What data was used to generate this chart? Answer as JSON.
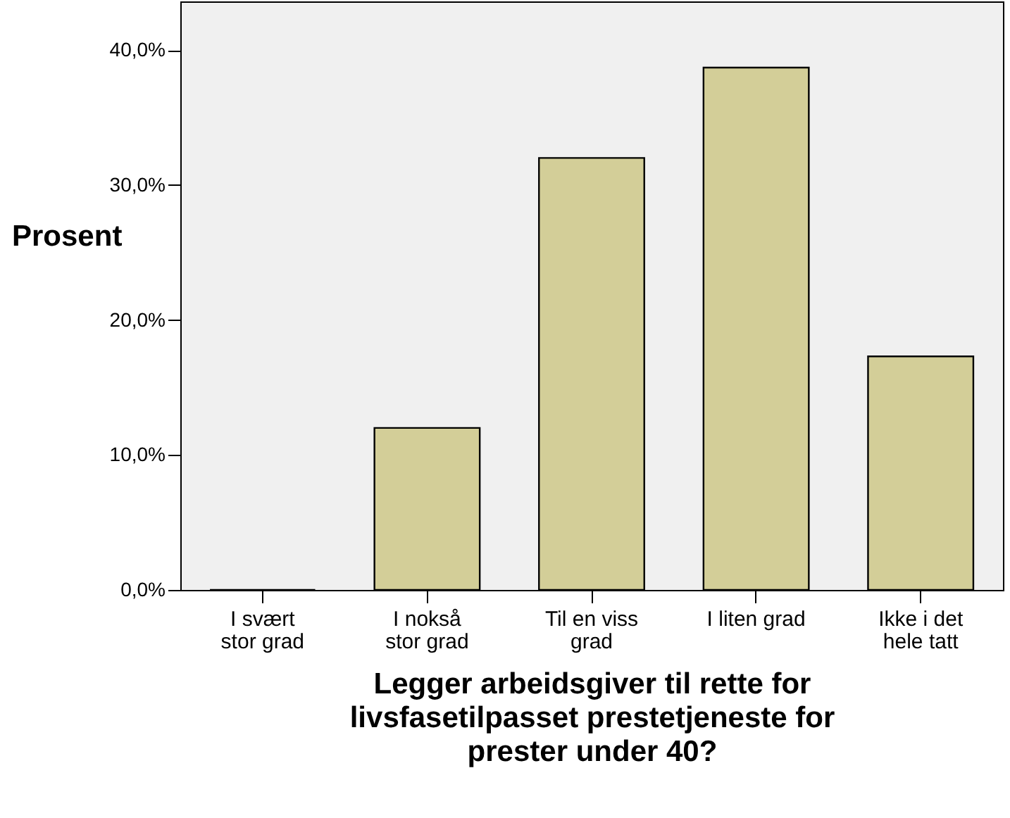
{
  "chart_data": {
    "type": "bar",
    "xlabel": "Legger arbeidsgiver til rette for livsfasetilpasset prestetjeneste for prester under 40?",
    "ylabel": "Prosent",
    "categories": [
      "I svært\nstor grad",
      "I nokså\nstor grad",
      "Til en viss\ngrad",
      "I liten grad",
      "Ikke i det\nhele tatt"
    ],
    "values": [
      0.0,
      12.0,
      32.0,
      38.7,
      17.3
    ],
    "colors": [
      "#000000",
      "#d3ce98",
      "#d3ce98",
      "#d3ce98",
      "#d3ce98"
    ],
    "ylim": [
      0,
      43.6
    ],
    "yticks": [
      {
        "value": 0,
        "label": "0,0%"
      },
      {
        "value": 10,
        "label": "10,0%"
      },
      {
        "value": 20,
        "label": "20,0%"
      },
      {
        "value": 30,
        "label": "30,0%"
      },
      {
        "value": 40,
        "label": "40,0%"
      }
    ],
    "grid": false
  }
}
